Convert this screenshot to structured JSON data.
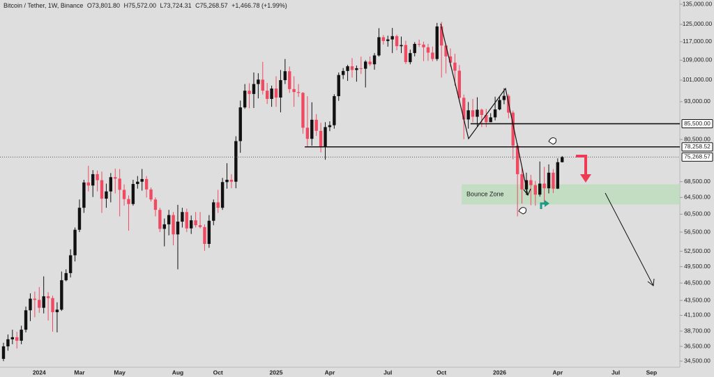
{
  "chart_data": {
    "type": "candlestick",
    "symbol": "Bitcoin / Tether, 1W, Binance",
    "ohlc_labels": [
      "O73,801.80",
      "H75,572.00",
      "L73,724.31",
      "C75,268.57"
    ],
    "change_label": "+1,466.78 (+1.99%)",
    "log_scale": true,
    "ylim": [
      33700,
      137200
    ],
    "yticks": [
      {
        "value": 135000,
        "label": "135,000.00"
      },
      {
        "value": 125000,
        "label": "125,000.00"
      },
      {
        "value": 117000,
        "label": "117,000.00"
      },
      {
        "value": 109000,
        "label": "109,000.00"
      },
      {
        "value": 101000,
        "label": "101,000.00"
      },
      {
        "value": 93000,
        "label": "93,000.00"
      },
      {
        "value": 80500,
        "label": "80,500.00"
      },
      {
        "value": 68500,
        "label": "68,500.00"
      },
      {
        "value": 64500,
        "label": "64,500.00"
      },
      {
        "value": 60500,
        "label": "60,500.00"
      },
      {
        "value": 56500,
        "label": "56,500.00"
      },
      {
        "value": 52500,
        "label": "52,500.00"
      },
      {
        "value": 49500,
        "label": "49,500.00"
      },
      {
        "value": 46500,
        "label": "46,500.00"
      },
      {
        "value": 43500,
        "label": "43,500.00"
      },
      {
        "value": 41100,
        "label": "41,100.00"
      },
      {
        "value": 38700,
        "label": "38,700.00"
      },
      {
        "value": 36500,
        "label": "36,500.00"
      },
      {
        "value": 34500,
        "label": "34,500.00"
      }
    ],
    "up_color": "#111111",
    "down_color": "#ef4a62",
    "categories": [
      null,
      null,
      null,
      null,
      null,
      null,
      null,
      null,
      "2024",
      null,
      null,
      null,
      null,
      null,
      null,
      null,
      null,
      "Mar",
      null,
      null,
      null,
      null,
      null,
      null,
      null,
      null,
      "May",
      null,
      null,
      null,
      null,
      null,
      null,
      null,
      null,
      null,
      null,
      null,
      null,
      "Aug",
      null,
      null,
      null,
      null,
      null,
      null,
      null,
      null,
      "Oct",
      null,
      null,
      null,
      null,
      null,
      null,
      null,
      null,
      null,
      null,
      null,
      null,
      "2025",
      null,
      null,
      null,
      null,
      null,
      null,
      null,
      null,
      null,
      null,
      null,
      "Apr",
      null,
      null,
      null,
      null,
      null,
      null,
      null,
      null,
      null,
      null,
      null,
      null,
      "Jul",
      null,
      null,
      null,
      null,
      null,
      null,
      null,
      null,
      null,
      null,
      null,
      "Oct",
      null,
      null,
      null,
      null,
      null,
      null,
      null,
      null,
      null,
      null,
      null,
      null,
      "2026",
      null,
      null,
      null,
      null,
      null,
      null,
      null,
      null,
      null,
      null,
      null,
      null,
      "Apr",
      null,
      null,
      null,
      null,
      null,
      null,
      null,
      null,
      null,
      null,
      null,
      null,
      "Jul",
      null,
      null,
      null,
      null,
      null,
      null,
      null,
      "Sep",
      null
    ],
    "open": [
      34800,
      36500,
      37500,
      37800,
      37300,
      38900,
      41900,
      43800,
      43600,
      42300,
      44200,
      43900,
      41600,
      42000,
      47000,
      48300,
      51700,
      57000,
      62000,
      68300,
      67500,
      70500,
      68900,
      64200,
      66000,
      69700,
      69300,
      66400,
      64100,
      62900,
      67900,
      68500,
      69200,
      66500,
      64000,
      61500,
      57200,
      58200,
      60300,
      56000,
      58800,
      61000,
      57300,
      59100,
      58000,
      57600,
      54000,
      59000,
      63300,
      62000,
      68400,
      69000,
      68500,
      80000,
      91000,
      97000,
      95800,
      99500,
      101200,
      97000,
      94000,
      97800,
      94500,
      101000,
      104500,
      97600,
      96500,
      96200,
      84200,
      80700,
      86800,
      83200,
      78400,
      84400,
      85000,
      95000,
      103000,
      104600,
      106500,
      105000,
      105700,
      105500,
      108400,
      107300,
      111000,
      119000,
      117300,
      118000,
      119500,
      115000,
      115500,
      108200,
      112000,
      116000,
      115700,
      114500,
      112200,
      109500,
      124000,
      115300,
      110600,
      108000,
      104700,
      94400,
      86900,
      90000,
      87800,
      90200,
      88400,
      86000,
      87600,
      90300,
      93600,
      95100,
      89200,
      78600,
      70500,
      66500,
      68900,
      67600,
      65200,
      68000,
      66800,
      70900,
      66700,
      73801.8,
      null,
      null,
      null,
      null,
      null,
      null,
      null,
      null,
      null,
      null,
      null,
      null,
      null,
      null,
      null,
      null,
      null,
      null,
      null,
      null,
      null
    ],
    "high": [
      37000,
      38200,
      38900,
      38600,
      39500,
      42500,
      44700,
      45000,
      45800,
      47700,
      44900,
      44300,
      43200,
      48600,
      49000,
      52900,
      57500,
      64000,
      69000,
      72800,
      71600,
      71500,
      71200,
      68000,
      70800,
      72000,
      71900,
      67800,
      65000,
      69000,
      70000,
      71900,
      70000,
      67000,
      64500,
      62000,
      59500,
      61500,
      61000,
      62700,
      62000,
      61800,
      60200,
      61000,
      61000,
      58200,
      60300,
      64000,
      66400,
      69500,
      73500,
      70500,
      81500,
      93400,
      99500,
      99800,
      104000,
      103700,
      108300,
      99900,
      98900,
      102500,
      105000,
      109500,
      106400,
      102500,
      99500,
      96500,
      95000,
      92800,
      88700,
      85800,
      86000,
      86300,
      95700,
      104000,
      105800,
      107100,
      109900,
      106800,
      110500,
      109000,
      110600,
      112000,
      123200,
      120000,
      119700,
      123300,
      120200,
      119300,
      117400,
      113500,
      116800,
      117900,
      117000,
      116000,
      114800,
      125700,
      126200,
      116000,
      114000,
      111700,
      107000,
      95600,
      92900,
      94000,
      94600,
      90600,
      90500,
      89000,
      94800,
      94800,
      97900,
      95700,
      89900,
      79300,
      72300,
      70900,
      70300,
      68700,
      74000,
      72500,
      73200,
      71900,
      74900,
      75572,
      null,
      null,
      null,
      null,
      null,
      null,
      null,
      null,
      null,
      null,
      null,
      null,
      null,
      null,
      null,
      null,
      null,
      null,
      null,
      null,
      null
    ],
    "low": [
      34500,
      35900,
      36800,
      36200,
      36800,
      38500,
      40200,
      40800,
      41500,
      41400,
      40300,
      38600,
      38500,
      41800,
      46800,
      47500,
      50500,
      56500,
      60800,
      66000,
      64600,
      66000,
      60800,
      62000,
      63300,
      65500,
      60000,
      62500,
      56800,
      62500,
      66700,
      66200,
      64500,
      63500,
      60000,
      56500,
      53500,
      55800,
      53700,
      49000,
      57500,
      56500,
      56100,
      57500,
      57300,
      52600,
      53200,
      58000,
      60800,
      61500,
      66700,
      66800,
      66800,
      76500,
      90500,
      90700,
      90800,
      94200,
      95600,
      92200,
      91200,
      91200,
      89300,
      99500,
      96200,
      91200,
      94700,
      82300,
      78200,
      78600,
      81600,
      76600,
      74500,
      83100,
      83900,
      93300,
      101400,
      100700,
      102000,
      100400,
      103400,
      98200,
      106600,
      105100,
      110500,
      115700,
      114800,
      112000,
      113200,
      112000,
      107400,
      107300,
      110600,
      114700,
      108600,
      108700,
      108500,
      108700,
      102000,
      103600,
      106300,
      98900,
      92900,
      80600,
      83900,
      86000,
      84500,
      84400,
      84400,
      86000,
      86600,
      90000,
      92100,
      87300,
      74600,
      60000,
      63000,
      65100,
      62600,
      62500,
      64700,
      63000,
      65500,
      65600,
      66600,
      73724.31,
      null,
      null,
      null,
      null,
      null,
      null,
      null,
      null,
      null,
      null,
      null,
      null,
      null,
      null,
      null,
      null,
      null,
      null,
      null,
      null,
      null
    ],
    "close": [
      36500,
      37500,
      37800,
      37300,
      38900,
      41900,
      43800,
      43600,
      42300,
      44200,
      43900,
      41600,
      42000,
      47000,
      48300,
      51700,
      57000,
      62000,
      68300,
      67500,
      70500,
      68900,
      64200,
      66000,
      69700,
      69300,
      66400,
      64100,
      62900,
      67900,
      68500,
      69200,
      66500,
      64000,
      61500,
      57200,
      58200,
      60300,
      56000,
      58800,
      61000,
      57300,
      59100,
      58000,
      57600,
      54000,
      59000,
      63300,
      62000,
      68400,
      69000,
      68500,
      80000,
      91000,
      97000,
      95800,
      99500,
      101200,
      97000,
      94000,
      97800,
      94500,
      101000,
      104500,
      97600,
      96500,
      96200,
      84200,
      80700,
      86800,
      83200,
      78400,
      84400,
      85000,
      95000,
      103000,
      104600,
      106500,
      105000,
      105700,
      105500,
      108400,
      107300,
      111000,
      119000,
      117300,
      118000,
      119500,
      115000,
      115500,
      108200,
      112000,
      116000,
      115700,
      114500,
      112200,
      109500,
      124000,
      115300,
      110600,
      108000,
      104700,
      94400,
      86900,
      90000,
      87800,
      90200,
      88400,
      86000,
      87600,
      90300,
      93600,
      95100,
      89200,
      78600,
      70500,
      66500,
      68900,
      67600,
      65200,
      68000,
      66800,
      70900,
      66700,
      73801.8,
      75268.57,
      null,
      null,
      null,
      null,
      null,
      null,
      null,
      null,
      null,
      null,
      null,
      null,
      null,
      null,
      null,
      null,
      null,
      null,
      null,
      null,
      null
    ],
    "levels": [
      {
        "value": 85500,
        "label": "85,500.00",
        "start": 104.5
      },
      {
        "value": 78258.52,
        "label": "78,258.52",
        "start": 67.4
      }
    ],
    "last_price": {
      "value": 75268.57,
      "label": "75,268.57"
    },
    "zone": {
      "label": "Bounce Zone",
      "low": 62800,
      "high": 67800,
      "start": 102.5
    }
  }
}
